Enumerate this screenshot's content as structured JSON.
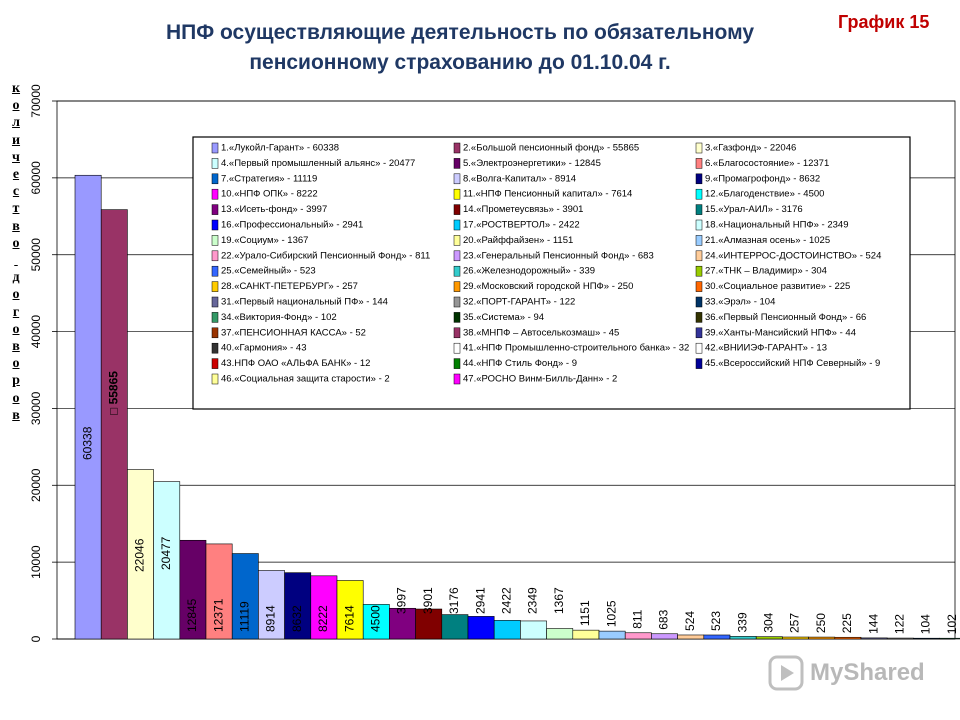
{
  "title_line1": "НПФ осуществляющие деятельность по обязательному",
  "title_line2": "пенсионному страхованию до 01.10.04 г.",
  "graph_label": "График 15",
  "watermark": "MyShared",
  "chart_data": {
    "type": "bar",
    "title": "НПФ осуществляющие деятельность по обязательному пенсионному страхованию до 01.10.04 г.",
    "ylabel": "количество договоров",
    "ylim": [
      0,
      70000
    ],
    "yticks": [
      0,
      10000,
      20000,
      30000,
      40000,
      50000,
      60000,
      70000
    ],
    "grid": true,
    "series": [
      {
        "label": "1.«Лукойл-Гарант» - 60338",
        "value": 60338,
        "value_label": "60338",
        "color": "#9999ff"
      },
      {
        "label": "2.«Большой пенсионный фонд» - 55865",
        "value": 55865,
        "value_label": "□ 55865",
        "color": "#993366"
      },
      {
        "label": "3.«Газфонд» - 22046",
        "value": 22046,
        "value_label": "22046",
        "color": "#ffffcc"
      },
      {
        "label": "4.«Первый промышленный альянс» - 20477",
        "value": 20477,
        "value_label": "20477",
        "color": "#ccffff"
      },
      {
        "label": "5.«Электроэнергетики» - 12845",
        "value": 12845,
        "value_label": "12845",
        "color": "#660066"
      },
      {
        "label": "6.«Благосостояние» - 12371",
        "value": 12371,
        "value_label": "12371",
        "color": "#ff8080"
      },
      {
        "label": "7.«Стратегия» - 11119",
        "value": 11119,
        "value_label": "11119",
        "color": "#0066cc"
      },
      {
        "label": "8.«Волга-Капитал» - 8914",
        "value": 8914,
        "value_label": "8914",
        "color": "#ccccff"
      },
      {
        "label": "9.«Промагрофонд» - 8632",
        "value": 8632,
        "value_label": "8632",
        "color": "#000080"
      },
      {
        "label": "10.«НПФ ОПК» - 8222",
        "value": 8222,
        "value_label": "8222",
        "color": "#ff00ff"
      },
      {
        "label": "11.«НПФ Пенсионный капитал» - 7614",
        "value": 7614,
        "value_label": "7614",
        "color": "#ffff00"
      },
      {
        "label": "12.«Благоденствие» - 4500",
        "value": 4500,
        "value_label": "4500",
        "color": "#00ffff"
      },
      {
        "label": "13.«Исеть-фонд» - 3997",
        "value": 3997,
        "value_label": "3997",
        "color": "#800080"
      },
      {
        "label": "14.«Прометеусвязь» - 3901",
        "value": 3901,
        "value_label": "3901",
        "color": "#800000"
      },
      {
        "label": "15.«Урал-АИЛ» - 3176",
        "value": 3176,
        "value_label": "3176",
        "color": "#008080"
      },
      {
        "label": "16.«Профессиональный» - 2941",
        "value": 2941,
        "value_label": "2941",
        "color": "#0000ff"
      },
      {
        "label": "17.«РОСТВЕРТОЛ» - 2422",
        "value": 2422,
        "value_label": "2422",
        "color": "#00ccff"
      },
      {
        "label": "18.«Национальный НПФ» - 2349",
        "value": 2349,
        "value_label": "2349",
        "color": "#ccffff"
      },
      {
        "label": "19.«Социум» - 1367",
        "value": 1367,
        "value_label": "1367",
        "color": "#ccffcc"
      },
      {
        "label": "20.«Райффайзен» - 1151",
        "value": 1151,
        "value_label": "1151",
        "color": "#ffff99"
      },
      {
        "label": "21.«Алмазная осень» - 1025",
        "value": 1025,
        "value_label": "1025",
        "color": "#99ccff"
      },
      {
        "label": "22.«Урало-Сибирский Пенсионный Фонд» - 811",
        "value": 811,
        "value_label": "811",
        "color": "#ff99cc"
      },
      {
        "label": "23.«Генеральный Пенсионный Фонд» - 683",
        "value": 683,
        "value_label": "683",
        "color": "#cc99ff"
      },
      {
        "label": "24.«ИНТЕРРОС-ДОСТОИНСТВО» - 524",
        "value": 524,
        "value_label": "524",
        "color": "#ffcc99"
      },
      {
        "label": "25.«Семейный» - 523",
        "value": 523,
        "value_label": "523",
        "color": "#3366ff"
      },
      {
        "label": "26.«Железнодорожный» - 339",
        "value": 339,
        "value_label": "339",
        "color": "#33cccc"
      },
      {
        "label": "27.«ТНК – Владимир» - 304",
        "value": 304,
        "value_label": "304",
        "color": "#99cc00"
      },
      {
        "label": "28.«САНКТ-ПЕТЕРБУРГ» - 257",
        "value": 257,
        "value_label": "257",
        "color": "#ffcc00"
      },
      {
        "label": "29.«Московский городской НПФ» - 250",
        "value": 250,
        "value_label": "250",
        "color": "#ff9900"
      },
      {
        "label": "30.«Социальное развитие» - 225",
        "value": 225,
        "value_label": "225",
        "color": "#ff6600"
      },
      {
        "label": "31.«Первый национальный ПФ» - 144",
        "value": 144,
        "value_label": "144",
        "color": "#666699"
      },
      {
        "label": "32.«ПОРТ-ГАРАНТ» - 122",
        "value": 122,
        "value_label": "122",
        "color": "#969696"
      },
      {
        "label": "33.«Эрэл» - 104",
        "value": 104,
        "value_label": "104",
        "color": "#003366"
      },
      {
        "label": "34.«Виктория-Фонд» - 102",
        "value": 102,
        "value_label": "102",
        "color": "#339966"
      },
      {
        "label": "35.«Система» - 94",
        "value": null,
        "value_label": "",
        "color": "#003300"
      },
      {
        "label": "36.«Первый Пенсионный Фонд» - 66",
        "value": null,
        "value_label": "",
        "color": "#333300"
      },
      {
        "label": "37.«ПЕНСИОННАЯ КАССА» - 52",
        "value": null,
        "value_label": "",
        "color": "#993300"
      },
      {
        "label": "38.«МНПФ – Автоселькозмаш» - 45",
        "value": null,
        "value_label": "",
        "color": "#993366"
      },
      {
        "label": "39.«Ханты-Мансийский НПФ» - 44",
        "value": null,
        "value_label": "",
        "color": "#333399"
      },
      {
        "label": "40.«Гармония» - 43",
        "value": null,
        "value_label": "",
        "color": "#333333"
      },
      {
        "label": "41.«НПФ Промышленно-строительного банка» - 32",
        "value": null,
        "value_label": "",
        "color": "#ffffff"
      },
      {
        "label": "42.«ВНИИЭФ-ГАРАНТ» - 13",
        "value": null,
        "value_label": "",
        "color": "#ffffff"
      },
      {
        "label": "43.НПФ ОАО «АЛЬФА БАНК» - 12",
        "value": null,
        "value_label": "",
        "color": "#cc0000"
      },
      {
        "label": "44.«НПФ Стиль Фонд» - 9",
        "value": null,
        "value_label": "",
        "color": "#008000"
      },
      {
        "label": "45.«Всероссийский НПФ Северный» - 9",
        "value": null,
        "value_label": "",
        "color": "#000099"
      },
      {
        "label": "46.«Социальная защита старости» - 2",
        "value": null,
        "value_label": "",
        "color": "#ffff99"
      },
      {
        "label": "47.«РОСНО Винм-Билль-Данн» - 2",
        "value": null,
        "value_label": "",
        "color": "#ff00ff"
      }
    ]
  }
}
